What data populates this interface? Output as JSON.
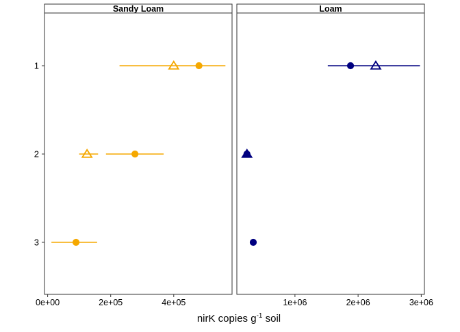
{
  "chart_data": {
    "type": "scatter",
    "xlabel": {
      "prefix": "nirK copies g",
      "superscript": "-1",
      "suffix": " soil"
    },
    "y_categories": [
      "1",
      "2",
      "3"
    ],
    "colors": {
      "Sandy Loam": "#F5A800",
      "Loam": "#000080"
    },
    "panels": [
      {
        "title": "Sandy Loam",
        "xlim": [
          -10000,
          585000
        ],
        "x_ticks": [
          0,
          200000,
          400000
        ],
        "x_tick_labels": [
          "0e+00",
          "2e+05",
          "4e+05"
        ],
        "points": [
          {
            "y": "1",
            "marker": "triangle-open",
            "x": 400000,
            "xmin": null,
            "xmax": null
          },
          {
            "y": "1",
            "marker": "circle-filled",
            "x": 480000,
            "xmin": 228000,
            "xmax": 564000
          },
          {
            "y": "2",
            "marker": "triangle-open",
            "x": 125000,
            "xmin": 100000,
            "xmax": 160000
          },
          {
            "y": "2",
            "marker": "circle-filled",
            "x": 277000,
            "xmin": 185000,
            "xmax": 368000
          },
          {
            "y": "3",
            "marker": "circle-filled",
            "x": 90000,
            "xmin": 12000,
            "xmax": 157000
          }
        ]
      },
      {
        "title": "Loam",
        "xlim": [
          80000,
          3050000
        ],
        "x_ticks": [
          1000000,
          2000000,
          3000000
        ],
        "x_tick_labels": [
          "1e+06",
          "2e+06",
          "3e+06"
        ],
        "points": [
          {
            "y": "1",
            "marker": "triangle-open",
            "x": 2280000,
            "xmin": null,
            "xmax": null
          },
          {
            "y": "1",
            "marker": "circle-filled",
            "x": 1880000,
            "xmin": 1520000,
            "xmax": 2980000
          },
          {
            "y": "2",
            "marker": "triangle-filled",
            "x": 240000,
            "xmin": 215000,
            "xmax": 270000
          },
          {
            "y": "2",
            "marker": "circle-filled",
            "x": 240000,
            "xmin": null,
            "xmax": null
          },
          {
            "y": "3",
            "marker": "circle-filled",
            "x": 340000,
            "xmin": null,
            "xmax": null
          }
        ]
      }
    ]
  }
}
